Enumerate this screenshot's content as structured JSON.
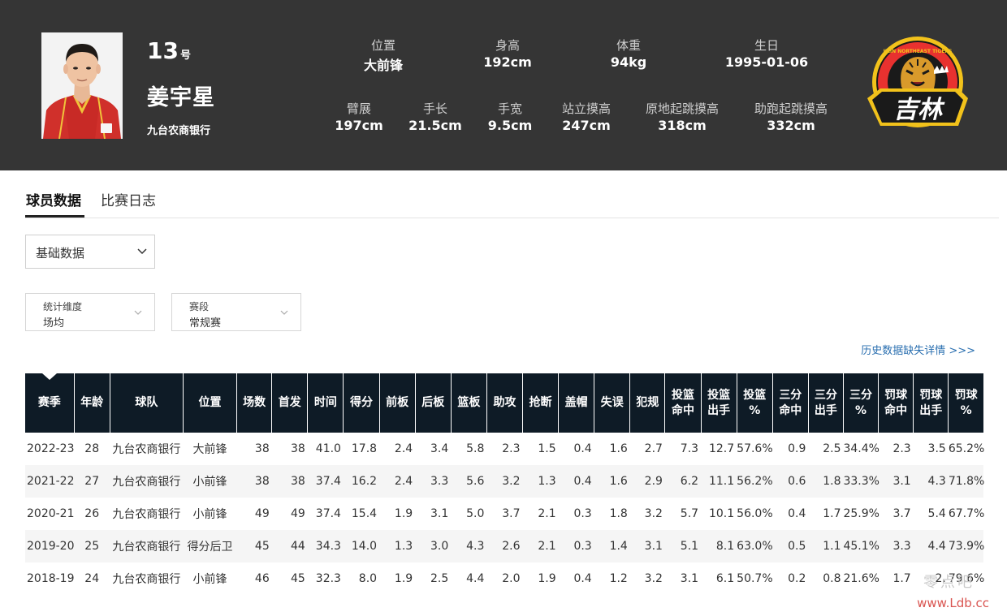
{
  "player": {
    "number": "13",
    "number_suffix": "号",
    "name": "姜宇星",
    "team": "九台农商银行"
  },
  "attributes": [
    {
      "label": "位置",
      "value": "大前锋"
    },
    {
      "label": "身高",
      "value": "192cm"
    },
    {
      "label": "体重",
      "value": "94kg"
    },
    {
      "label": "生日",
      "value": "1995-01-06"
    },
    {
      "label": "臂展",
      "value": "197cm"
    },
    {
      "label": "手长",
      "value": "21.5cm"
    },
    {
      "label": "手宽",
      "value": "9.5cm"
    },
    {
      "label": "站立摸高",
      "value": "247cm"
    },
    {
      "label": "原地起跳摸高",
      "value": "318cm"
    },
    {
      "label": "助跑起跳摸高",
      "value": "332cm"
    }
  ],
  "logo": {
    "text": "吉林",
    "ring_text": "JILIN NORTHEAST TIGERS",
    "colors": {
      "ring": "#e8312f",
      "gold": "#f2c21b",
      "dark": "#1a1a1a"
    }
  },
  "tabs": [
    {
      "label": "球员数据",
      "active": true
    },
    {
      "label": "比赛日志",
      "active": false
    }
  ],
  "data_type_select": "基础数据",
  "filters": [
    {
      "key": "统计维度",
      "value": "场均"
    },
    {
      "key": "赛段",
      "value": "常规赛"
    }
  ],
  "history_link": "历史数据缺失详情 >>>",
  "table": {
    "headers": [
      [
        "赛季"
      ],
      [
        "年龄"
      ],
      [
        "球队"
      ],
      [
        "位置"
      ],
      [
        "场数"
      ],
      [
        "首发"
      ],
      [
        "时间"
      ],
      [
        "得分"
      ],
      [
        "前板"
      ],
      [
        "后板"
      ],
      [
        "篮板"
      ],
      [
        "助攻"
      ],
      [
        "抢断"
      ],
      [
        "盖帽"
      ],
      [
        "失误"
      ],
      [
        "犯规"
      ],
      [
        "投篮",
        "命中"
      ],
      [
        "投篮",
        "出手"
      ],
      [
        "投篮",
        "%"
      ],
      [
        "三分",
        "命中"
      ],
      [
        "三分",
        "出手"
      ],
      [
        "三分",
        "%"
      ],
      [
        "罚球",
        "命中"
      ],
      [
        "罚球",
        "出手"
      ],
      [
        "罚球",
        "%"
      ]
    ],
    "rows": [
      [
        "2022-23",
        "28",
        "九台农商银行",
        "大前锋",
        "38",
        "38",
        "41.0",
        "17.8",
        "2.4",
        "3.4",
        "5.8",
        "2.3",
        "1.5",
        "0.4",
        "1.6",
        "2.7",
        "7.3",
        "12.7",
        "57.6%",
        "0.9",
        "2.5",
        "34.4%",
        "2.3",
        "3.5",
        "65.2%"
      ],
      [
        "2021-22",
        "27",
        "九台农商银行",
        "小前锋",
        "38",
        "38",
        "37.4",
        "16.2",
        "2.4",
        "3.3",
        "5.6",
        "3.2",
        "1.3",
        "0.4",
        "1.6",
        "2.9",
        "6.2",
        "11.1",
        "56.2%",
        "0.6",
        "1.8",
        "33.3%",
        "3.1",
        "4.3",
        "71.8%"
      ],
      [
        "2020-21",
        "26",
        "九台农商银行",
        "小前锋",
        "49",
        "49",
        "37.4",
        "15.4",
        "1.9",
        "3.1",
        "5.0",
        "3.7",
        "2.1",
        "0.3",
        "1.8",
        "3.2",
        "5.7",
        "10.1",
        "56.0%",
        "0.4",
        "1.7",
        "25.9%",
        "3.7",
        "5.4",
        "67.7%"
      ],
      [
        "2019-20",
        "25",
        "九台农商银行",
        "得分后卫",
        "45",
        "44",
        "34.3",
        "14.0",
        "1.3",
        "3.0",
        "4.3",
        "2.6",
        "2.1",
        "0.3",
        "1.4",
        "3.1",
        "5.1",
        "8.1",
        "63.0%",
        "0.5",
        "1.1",
        "45.1%",
        "3.3",
        "4.4",
        "73.9%"
      ],
      [
        "2018-19",
        "24",
        "九台农商银行",
        "小前锋",
        "46",
        "45",
        "32.3",
        "8.0",
        "1.9",
        "2.5",
        "4.4",
        "2.0",
        "1.9",
        "0.4",
        "1.2",
        "3.2",
        "3.1",
        "6.1",
        "50.7%",
        "0.2",
        "0.8",
        "21.6%",
        "1.7",
        "2.",
        "79.6%"
      ]
    ]
  },
  "watermark": {
    "cn": "零点吧",
    "url": "www.Ldb.cc"
  }
}
